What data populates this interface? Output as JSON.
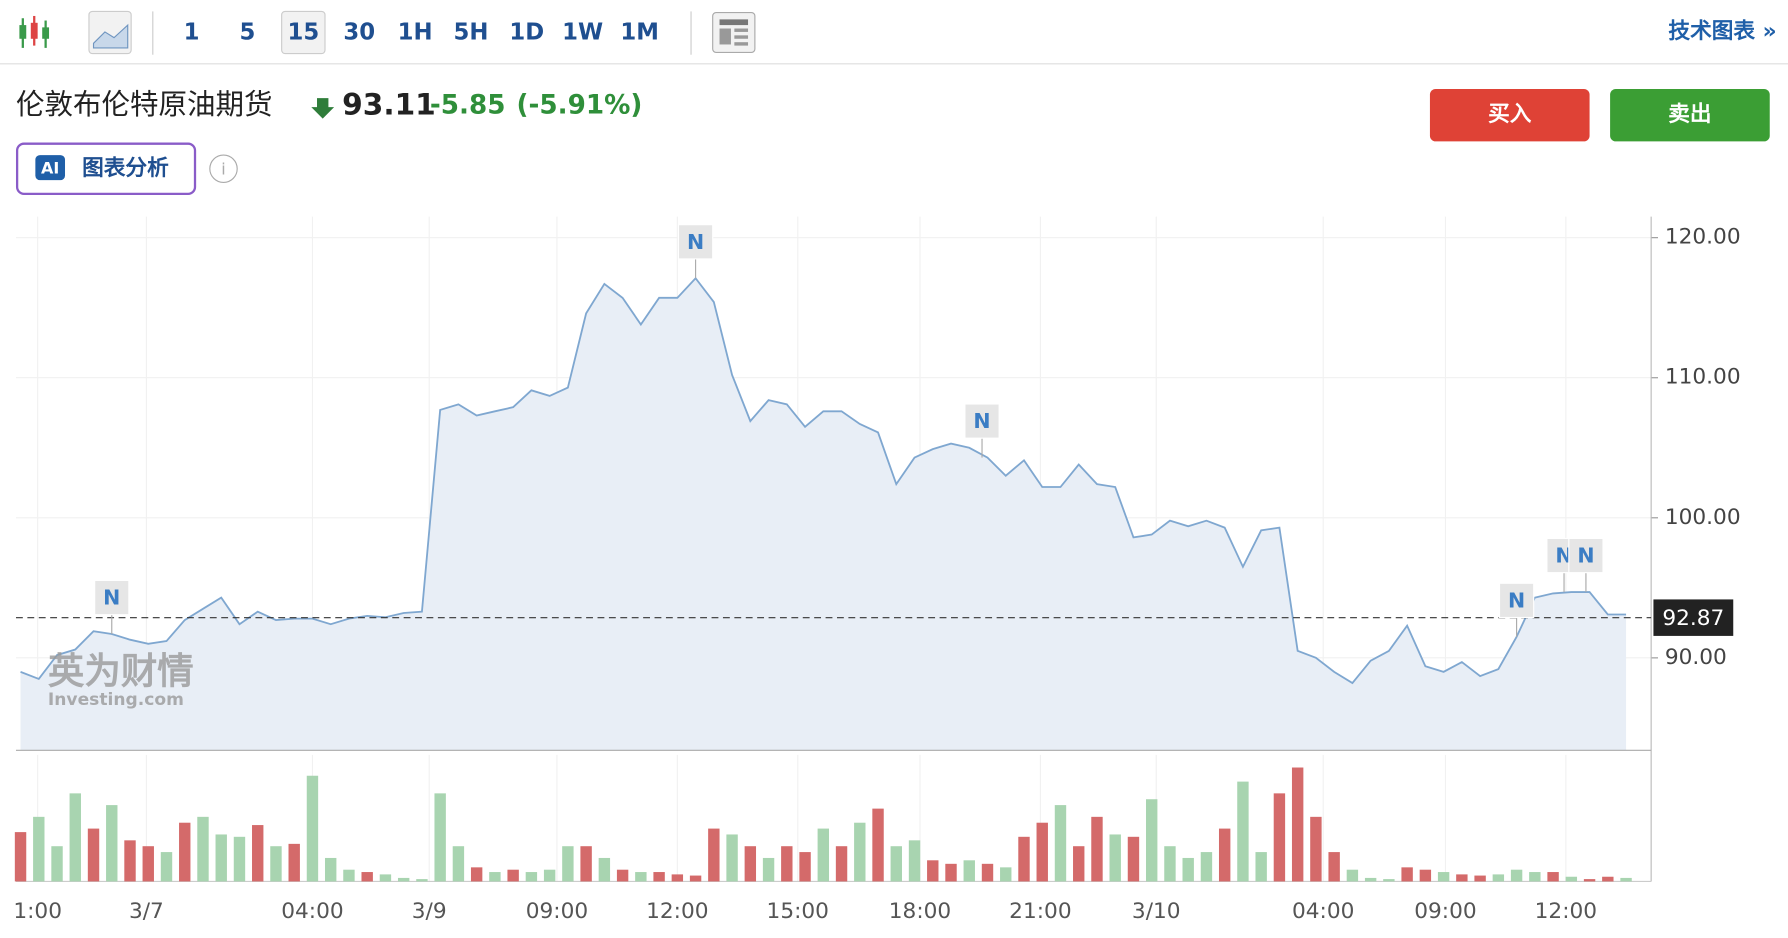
{
  "toolbar": {
    "intervals": [
      "1",
      "5",
      "15",
      "30",
      "1H",
      "5H",
      "1D",
      "1W",
      "1M"
    ],
    "selected": 2,
    "link": "技术图表 »"
  },
  "header": {
    "name": "伦敦布伦特原油期货",
    "price": "93.11",
    "change": "-5.85",
    "change_pct": "(-5.91%)",
    "buy": "买入",
    "sell": "卖出",
    "ai_badge": "AI",
    "ai_label": "图表分析",
    "watermark": "英为财情",
    "watermark_sub": "Investing.com"
  },
  "chart_data": [
    {
      "type": "area",
      "color": "#7fa7d0",
      "fill": "#e8eef6",
      "grid": true,
      "values": [
        89.0,
        88.5,
        90.2,
        90.6,
        91.9,
        91.7,
        91.3,
        91.0,
        91.2,
        92.7,
        93.5,
        94.3,
        92.4,
        93.3,
        92.7,
        92.8,
        92.8,
        92.4,
        92.8,
        93.0,
        92.9,
        93.2,
        93.3,
        107.7,
        108.1,
        107.3,
        107.6,
        107.9,
        109.1,
        108.7,
        109.3,
        114.6,
        116.7,
        115.7,
        113.8,
        115.7,
        115.7,
        117.1,
        115.4,
        110.2,
        106.9,
        108.4,
        108.1,
        106.5,
        107.6,
        107.6,
        106.7,
        106.1,
        102.4,
        104.3,
        104.9,
        105.3,
        105.0,
        104.3,
        103.0,
        104.1,
        102.2,
        102.2,
        103.8,
        102.4,
        102.2,
        98.6,
        98.8,
        99.8,
        99.4,
        99.8,
        99.3,
        96.5,
        99.1,
        99.3,
        90.5,
        90.0,
        89.0,
        88.2,
        89.8,
        90.5,
        92.3,
        89.4,
        89.0,
        89.7,
        88.7,
        89.2,
        91.5,
        94.3,
        94.6,
        94.7,
        94.7,
        93.1,
        93.1
      ],
      "xlim": [
        0,
        88
      ],
      "ylim": [
        83.4,
        121.5
      ],
      "yticks": [
        {
          "value": 90,
          "label": "90.00"
        },
        {
          "value": 100,
          "label": "100.00"
        },
        {
          "value": 110,
          "label": "110.00"
        },
        {
          "value": 120,
          "label": "120.00"
        }
      ],
      "last_price": 92.87,
      "annotations": [
        {
          "label": "N",
          "x": 5
        },
        {
          "label": "N",
          "x": 37
        },
        {
          "label": "N",
          "x": 52.7
        },
        {
          "label": "N",
          "x": 82
        },
        {
          "label": "N",
          "x": 84.6
        },
        {
          "label": "N",
          "x": 85.8
        }
      ]
    },
    {
      "type": "bar",
      "grid": true,
      "xlim": [
        0,
        88
      ],
      "ylim": [
        0,
        100
      ],
      "values": [
        42,
        55,
        30,
        75,
        45,
        65,
        35,
        30,
        25,
        50,
        55,
        40,
        38,
        48,
        30,
        32,
        90,
        20,
        10,
        8,
        6,
        3,
        2,
        75,
        30,
        12,
        8,
        10,
        8,
        10,
        30,
        30,
        20,
        10,
        8,
        8,
        6,
        5,
        45,
        40,
        30,
        20,
        30,
        25,
        45,
        30,
        50,
        62,
        30,
        35,
        18,
        15,
        18,
        15,
        12,
        38,
        50,
        65,
        30,
        55,
        40,
        38,
        70,
        30,
        20,
        25,
        45,
        85,
        25,
        75,
        97,
        55,
        25,
        10,
        3,
        2,
        12,
        10,
        8,
        6,
        5,
        6,
        10,
        8,
        8,
        4,
        2,
        4,
        3
      ],
      "colors": [
        "#d46a6a",
        "#a8d4b0",
        "#a8d4b0",
        "#a8d4b0",
        "#d46a6a",
        "#a8d4b0",
        "#d46a6a",
        "#d46a6a",
        "#a8d4b0",
        "#d46a6a",
        "#a8d4b0",
        "#a8d4b0",
        "#a8d4b0",
        "#d46a6a",
        "#a8d4b0",
        "#d46a6a",
        "#a8d4b0",
        "#a8d4b0",
        "#a8d4b0",
        "#d46a6a",
        "#a8d4b0",
        "#a8d4b0",
        "#a8d4b0",
        "#a8d4b0",
        "#a8d4b0",
        "#d46a6a",
        "#a8d4b0",
        "#d46a6a",
        "#a8d4b0",
        "#a8d4b0",
        "#a8d4b0",
        "#d46a6a",
        "#a8d4b0",
        "#d46a6a",
        "#a8d4b0",
        "#d46a6a",
        "#d46a6a",
        "#d46a6a",
        "#d46a6a",
        "#a8d4b0",
        "#d46a6a",
        "#a8d4b0",
        "#d46a6a",
        "#d46a6a",
        "#a8d4b0",
        "#d46a6a",
        "#a8d4b0",
        "#d46a6a",
        "#a8d4b0",
        "#a8d4b0",
        "#d46a6a",
        "#d46a6a",
        "#a8d4b0",
        "#d46a6a",
        "#a8d4b0",
        "#d46a6a",
        "#d46a6a",
        "#a8d4b0",
        "#d46a6a",
        "#d46a6a",
        "#a8d4b0",
        "#d46a6a",
        "#a8d4b0",
        "#a8d4b0",
        "#a8d4b0",
        "#a8d4b0",
        "#d46a6a",
        "#a8d4b0",
        "#a8d4b0",
        "#d46a6a",
        "#d46a6a",
        "#d46a6a",
        "#d46a6a",
        "#a8d4b0",
        "#a8d4b0",
        "#a8d4b0",
        "#d46a6a",
        "#d46a6a",
        "#a8d4b0",
        "#d46a6a",
        "#d46a6a",
        "#a8d4b0",
        "#a8d4b0",
        "#a8d4b0",
        "#d46a6a",
        "#a8d4b0",
        "#d46a6a",
        "#d46a6a",
        "#a8d4b0"
      ],
      "xticks": [
        {
          "value": 0.94,
          "label": "1:00"
        },
        {
          "value": 6.9,
          "label": "3/7"
        },
        {
          "value": 16,
          "label": "04:00"
        },
        {
          "value": 22.4,
          "label": "3/9"
        },
        {
          "value": 29.4,
          "label": "09:00"
        },
        {
          "value": 36,
          "label": "12:00"
        },
        {
          "value": 42.6,
          "label": "15:00"
        },
        {
          "value": 49.3,
          "label": "18:00"
        },
        {
          "value": 55.9,
          "label": "21:00"
        },
        {
          "value": 62.25,
          "label": "3/10"
        },
        {
          "value": 71.4,
          "label": "04:00"
        },
        {
          "value": 78.1,
          "label": "09:00"
        },
        {
          "value": 84.7,
          "label": "12:00"
        }
      ]
    }
  ]
}
